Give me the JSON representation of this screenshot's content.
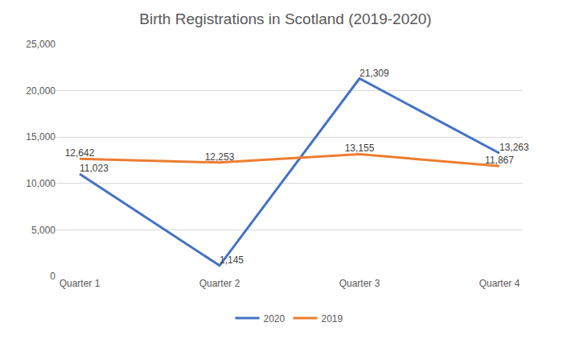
{
  "chart_data": {
    "type": "line",
    "title": "Birth Registrations in Scotland (2019-2020)",
    "categories": [
      "Quarter 1",
      "Quarter 2",
      "Quarter 3",
      "Quarter 4"
    ],
    "series": [
      {
        "name": "2020",
        "color": "#4472c4",
        "values": [
          11023,
          1145,
          21309,
          13263
        ],
        "value_labels": [
          "11,023",
          "1,145",
          "21,309",
          "13,263"
        ]
      },
      {
        "name": "2019",
        "color": "#ed7d31",
        "values": [
          12642,
          12253,
          13155,
          11867
        ],
        "value_labels": [
          "12,642",
          "12,253",
          "13,155",
          "11,867"
        ]
      }
    ],
    "ylim": [
      0,
      25000
    ],
    "yticks": [
      0,
      {
        "value": 5000,
        "label": "5,000"
      },
      {
        "value": 10000,
        "label": "10,000"
      },
      {
        "value": 15000,
        "label": "15,000"
      },
      {
        "value": 20000,
        "label": "20,000"
      },
      {
        "value": 25000,
        "label": "25,000"
      }
    ],
    "grid": true,
    "legend": "bottom",
    "data_labels": true
  }
}
